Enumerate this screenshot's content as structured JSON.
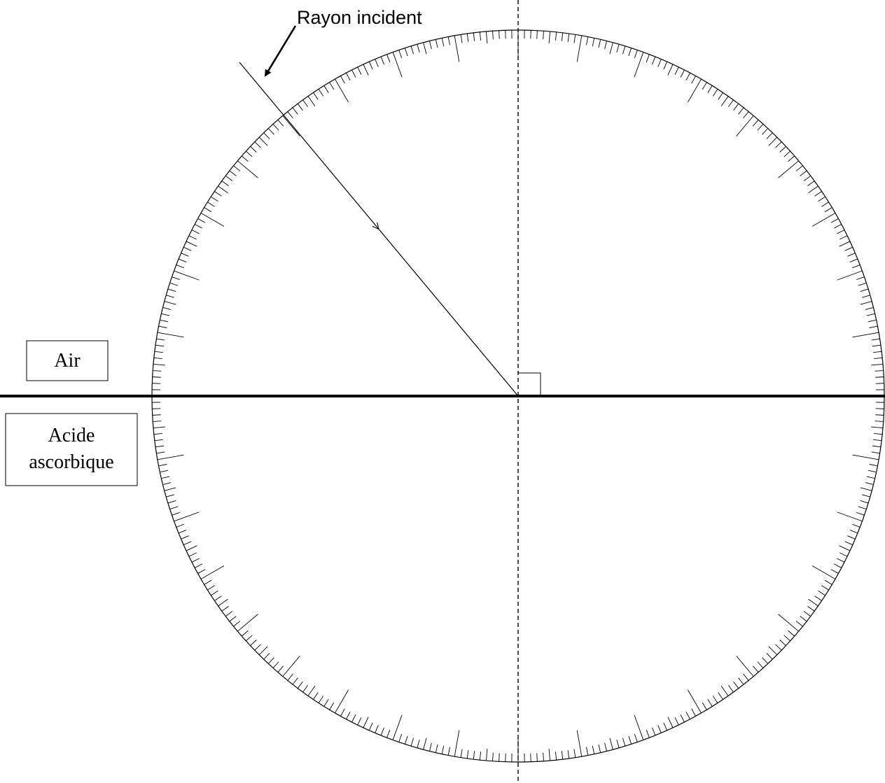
{
  "diagram": {
    "labels": {
      "incident_ray": "Rayon incident",
      "medium_top": "Air",
      "medium_bottom_line1": "Acide",
      "medium_bottom_line2": "ascorbique"
    },
    "protractor": {
      "minor_tick_step_deg": 1,
      "medium_tick_step_deg": 5,
      "major_tick_step_deg": 10
    },
    "incident_angle_deg": 40,
    "colors": {
      "line": "#000000",
      "background": "#ffffff"
    }
  }
}
